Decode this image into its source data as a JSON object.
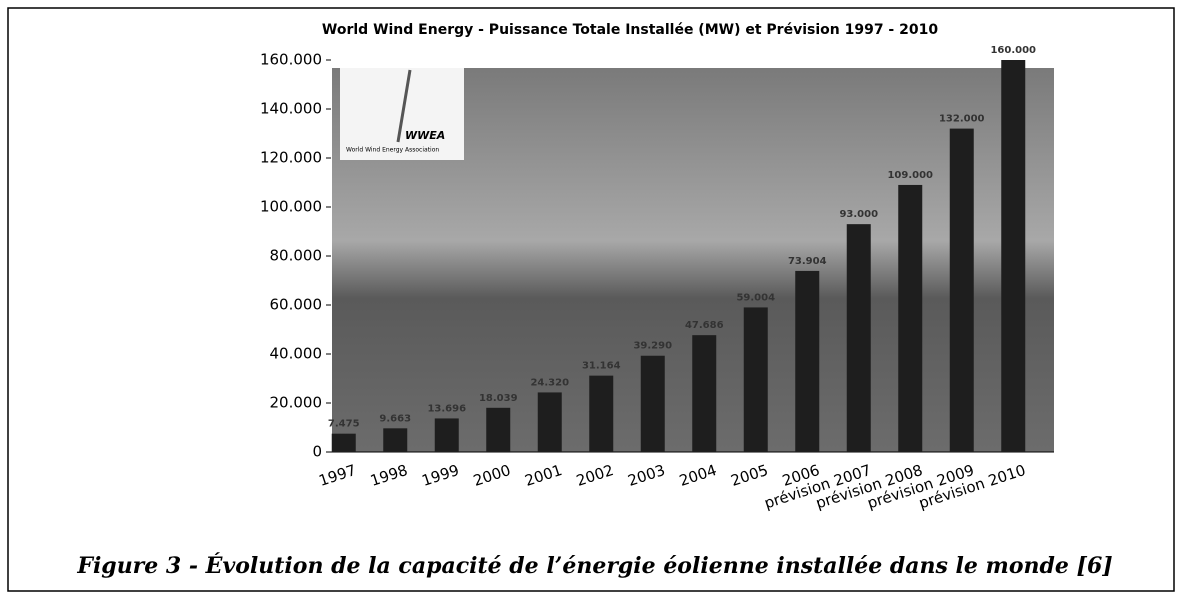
{
  "chart_data": {
    "type": "bar",
    "title": "World Wind Energy - Puissance Totale Installée (MW) et Prévision 1997 - 2010",
    "logo": {
      "text": "WWEA",
      "subtitle": "World Wind Energy Association"
    },
    "categories": [
      "1997",
      "1998",
      "1999",
      "2000",
      "2001",
      "2002",
      "2003",
      "2004",
      "2005",
      "2006",
      "prévision 2007",
      "prévision 2008",
      "prévision 2009",
      "prévision 2010"
    ],
    "values": [
      7475,
      9663,
      13696,
      18039,
      24320,
      31164,
      39290,
      47686,
      59004,
      73904,
      93000,
      109000,
      132000,
      160000
    ],
    "value_labels": [
      "7.475",
      "9.663",
      "13.696",
      "18.039",
      "24.320",
      "31.164",
      "39.290",
      "47.686",
      "59.004",
      "73.904",
      "93.000",
      "109.000",
      "132.000",
      "160.000"
    ],
    "color": "#1e1e1e",
    "ylim": [
      0,
      160000
    ],
    "yticks": [
      0,
      {
        "value": 20000,
        "label": "20.000"
      },
      {
        "value": 40000,
        "label": "40.000"
      },
      {
        "value": 60000,
        "label": "60.000"
      },
      {
        "value": 80000,
        "label": "80.000"
      },
      {
        "value": 100000,
        "label": "100.000"
      },
      {
        "value": 120000,
        "label": "120.000"
      },
      {
        "value": 140000,
        "label": "140.000"
      },
      {
        "value": 160000,
        "label": "160.000"
      }
    ],
    "grid": false
  },
  "caption": "Figure 3 - Évolution de la capacité de  l’énergie éolienne installée dans le monde [6]"
}
